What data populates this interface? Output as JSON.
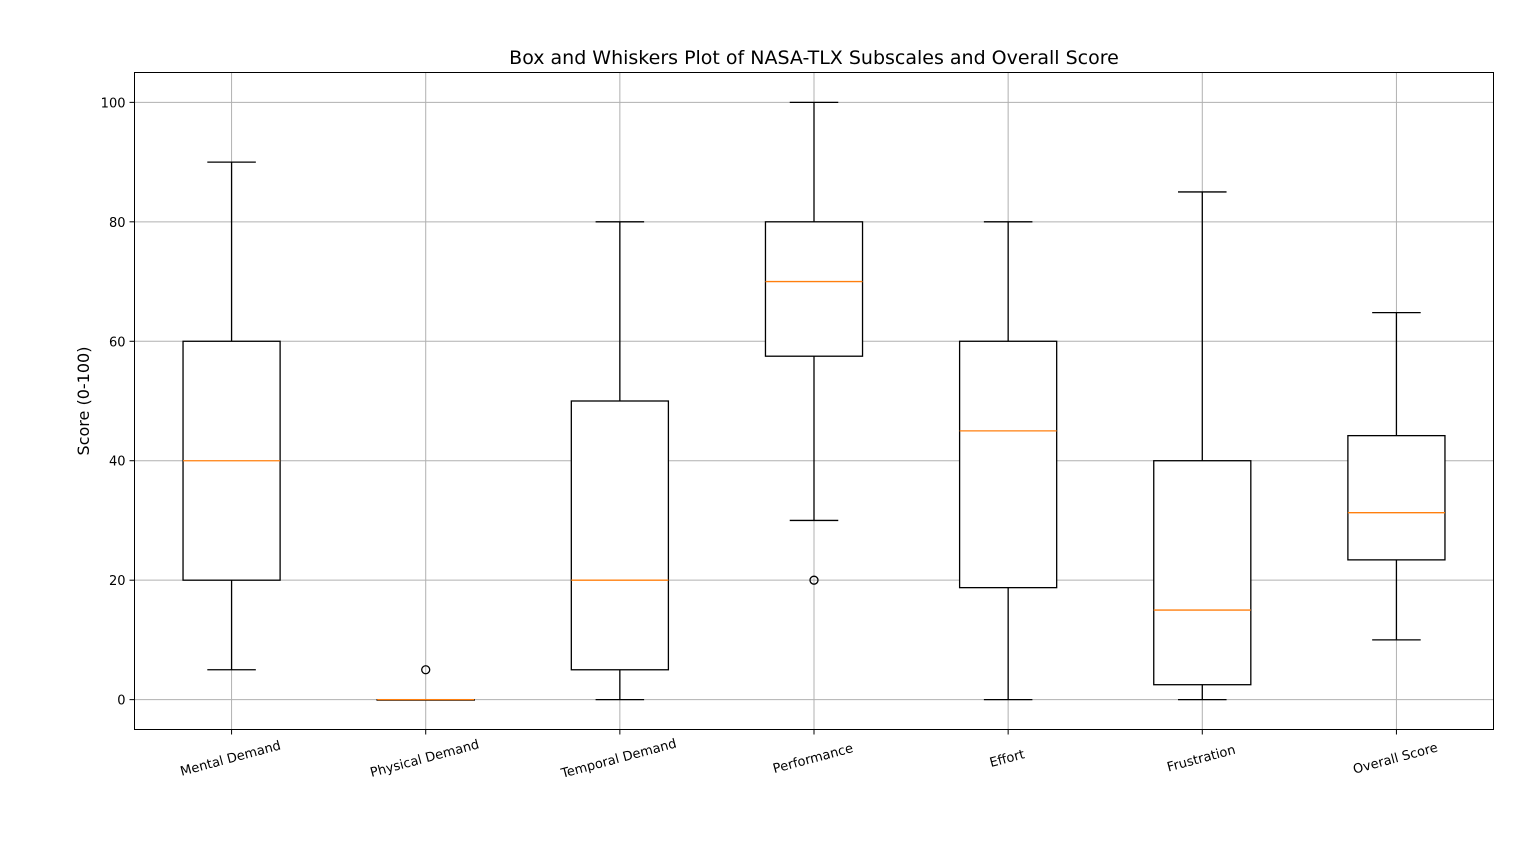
{
  "chart_data": {
    "type": "box",
    "title": "Box and Whiskers Plot of NASA-TLX Subscales and Overall Score",
    "xlabel": "",
    "ylabel": "Score (0-100)",
    "ylim": [
      -5,
      105
    ],
    "yticks": [
      0,
      20,
      40,
      60,
      80,
      100
    ],
    "grid": true,
    "categories": [
      "Mental Demand",
      "Physical Demand",
      "Temporal Demand",
      "Performance",
      "Effort",
      "Frustration",
      "Overall Score"
    ],
    "boxes": [
      {
        "whisker_low": 5,
        "q1": 20,
        "median": 40,
        "q3": 60,
        "whisker_high": 90,
        "outliers": []
      },
      {
        "whisker_low": 0,
        "q1": 0,
        "median": 0,
        "q3": 0,
        "whisker_high": 0,
        "outliers": [
          5
        ]
      },
      {
        "whisker_low": 0,
        "q1": 5,
        "median": 20,
        "q3": 50,
        "whisker_high": 80,
        "outliers": []
      },
      {
        "whisker_low": 30,
        "q1": 57.5,
        "median": 70,
        "q3": 80,
        "whisker_high": 100,
        "outliers": [
          20
        ]
      },
      {
        "whisker_low": 0,
        "q1": 18.75,
        "median": 45,
        "q3": 60,
        "whisker_high": 80,
        "outliers": []
      },
      {
        "whisker_low": 0,
        "q1": 2.5,
        "median": 15,
        "q3": 40,
        "whisker_high": 85,
        "outliers": []
      },
      {
        "whisker_low": 10,
        "q1": 23.4,
        "median": 31.3,
        "q3": 44.2,
        "whisker_high": 64.8,
        "outliers": []
      }
    ],
    "colors": {
      "box": "#000000",
      "median": "#ff7f0e",
      "grid": "#b0b0b0"
    }
  }
}
